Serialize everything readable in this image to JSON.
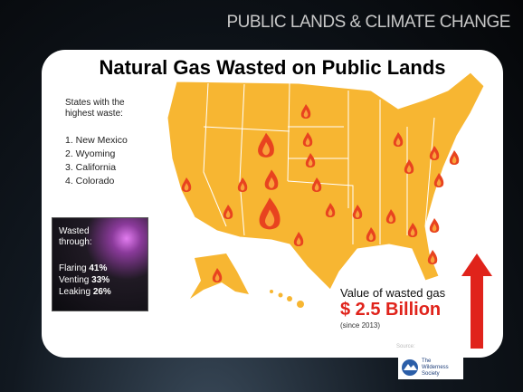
{
  "header": "PUBLIC LANDS & CLIMATE CHANGE",
  "title": "Natural Gas Wasted on Public Lands",
  "states": {
    "heading": "States with the highest waste:",
    "items": [
      "1. New Mexico",
      "2. Wyoming",
      "3. California",
      "4. Colorado"
    ]
  },
  "wasted": {
    "heading": "Wasted through:",
    "items": [
      {
        "label": "Flaring",
        "value": "41%"
      },
      {
        "label": "Venting",
        "value": "33%"
      },
      {
        "label": "Leaking",
        "value": "26%"
      }
    ]
  },
  "value": {
    "label": "Value of wasted gas",
    "amount": "$ 2.5 Billion",
    "note": "(since 2013)"
  },
  "source": {
    "label": "Source:",
    "org": "The Wilderness Society"
  }
}
